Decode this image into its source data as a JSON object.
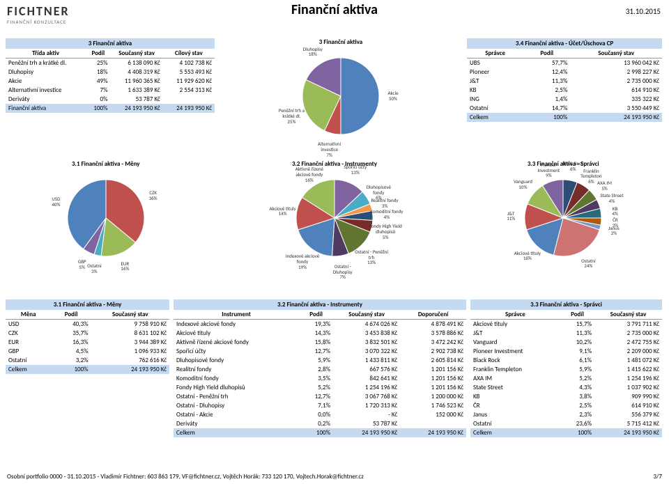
{
  "page_title": "Finanční aktiva",
  "date": "31.10.2015",
  "logo": {
    "name": "FICHTNER",
    "sub": "FINANČNÍ KONZULTACE"
  },
  "footer": {
    "left": "Osobní portfolio 0000 - 31.10.2015 - Vladimír Fichtner: 603 863 179, VF@fichtner.cz, Vojtěch Horák: 733 120 170, Vojtech.Horak@fichtner.cz",
    "right": "3/7"
  },
  "colors": {
    "hdr": "#c5d9f1"
  },
  "tbl3": {
    "title": "3 Finanční aktiva",
    "cols": [
      "Třída aktiv",
      "Podíl",
      "Současný stav",
      "Cílový stav"
    ],
    "rows": [
      [
        "Peněžní trh a krátké dl.",
        "25%",
        "6 138 090 Kč",
        "4 102 738 Kč"
      ],
      [
        "Dluhopisy",
        "18%",
        "4 408 319 Kč",
        "5 553 493 Kč"
      ],
      [
        "Akcie",
        "49%",
        "11 960 365 Kč",
        "11 929 620 Kč"
      ],
      [
        "Alternativní investice",
        "7%",
        "1 633 389 Kč",
        "2 554 313 Kč"
      ],
      [
        "Deriváty",
        "0%",
        "53 787 Kč",
        ""
      ],
      [
        "Finanční aktiva",
        "100%",
        "24 193 950 Kč",
        "24 193 950 Kč"
      ]
    ]
  },
  "pie3": {
    "title": "3 Finanční aktiva",
    "slices": [
      {
        "label": "Akcie",
        "pct": 50,
        "color": "#4f81bd"
      },
      {
        "label": "Alternativní investice",
        "pct": 7,
        "color": "#c0504d"
      },
      {
        "label": "Peněžní trh a krátké dl.",
        "pct": 25,
        "color": "#9bbb59"
      },
      {
        "label": "Dluhopisy",
        "pct": 18,
        "color": "#8064a2"
      }
    ]
  },
  "tbl34": {
    "title": "3.4 Finanční aktiva - Účet/Úschova CP",
    "cols": [
      "Správce",
      "Podíl",
      "Současný stav"
    ],
    "rows": [
      [
        "UBS",
        "57,7%",
        "13 960 042 Kč"
      ],
      [
        "Pioneer",
        "12,4%",
        "2 998 227 Kč"
      ],
      [
        "J&T",
        "11,3%",
        "2 735 000 Kč"
      ],
      [
        "KB",
        "2,5%",
        "614 910 Kč"
      ],
      [
        "ING",
        "1,4%",
        "335 322 Kč"
      ],
      [
        "Ostatní",
        "14,7%",
        "3 550 449 Kč"
      ],
      [
        "Celkem",
        "100%",
        "24 193 950 Kč"
      ]
    ]
  },
  "pie31": {
    "title": "3.1 Finanční aktiva - Měny",
    "slices": [
      {
        "label": "CZK",
        "pct": 36,
        "color": "#c0504d"
      },
      {
        "label": "EUR",
        "pct": 16,
        "color": "#9bbb59"
      },
      {
        "label": "Ostatní",
        "pct": 3,
        "color": "#4bacc6"
      },
      {
        "label": "GBP",
        "pct": 5,
        "color": "#8064a2"
      },
      {
        "label": "USD",
        "pct": 40,
        "color": "#4f81bd"
      }
    ]
  },
  "pie32": {
    "title": "3.2 Finanční aktiva - Instrumenty",
    "slices": [
      {
        "label": "Spořicí účty",
        "pct": 13,
        "color": "#8064a2"
      },
      {
        "label": "Dluhopisové fondy",
        "pct": 6,
        "color": "#4bacc6"
      },
      {
        "label": "Realitní fondy",
        "pct": 3,
        "color": "#f79646"
      },
      {
        "label": "Komoditní fondy",
        "pct": 4,
        "color": "#2c4d75"
      },
      {
        "label": "Fondy High Yield dluhopisů",
        "pct": 5,
        "color": "#772c2a"
      },
      {
        "label": "Ostatní - Peněžní trh",
        "pct": 13,
        "color": "#5f7530"
      },
      {
        "label": "Ostatní - Dluhopisy",
        "pct": 7,
        "color": "#4d3b62"
      },
      {
        "label": "Indexové akciové fondy",
        "pct": 19,
        "color": "#4f81bd"
      },
      {
        "label": "Akciové tituly",
        "pct": 14,
        "color": "#c0504d"
      },
      {
        "label": "Aktivně řízené akciové fondy",
        "pct": 16,
        "color": "#9bbb59"
      }
    ]
  },
  "pie33": {
    "title": "3.3 Finanční aktiva - Správci",
    "slices": [
      {
        "label": "Black Rock",
        "pct": 6,
        "color": "#2c4d75"
      },
      {
        "label": "Franklin Templeton",
        "pct": 6,
        "color": "#772c2a"
      },
      {
        "label": "AXA IM",
        "pct": 5,
        "color": "#5f7530"
      },
      {
        "label": "State Street",
        "pct": 4,
        "color": "#4d3b62"
      },
      {
        "label": "KB",
        "pct": 4,
        "color": "#276a7c"
      },
      {
        "label": "ČR",
        "pct": 3,
        "color": "#b65708"
      },
      {
        "label": "Janus",
        "pct": 2,
        "color": "#729aca"
      },
      {
        "label": "Ostatní",
        "pct": 24,
        "color": "#cd7371"
      },
      {
        "label": "Akciové tituly",
        "pct": 16,
        "color": "#4f81bd"
      },
      {
        "label": "J&T",
        "pct": 11,
        "color": "#c0504d"
      },
      {
        "label": "Vanguard",
        "pct": 10,
        "color": "#9bbb59"
      },
      {
        "label": "Pioneer Investment",
        "pct": 9,
        "color": "#8064a2"
      }
    ]
  },
  "tbl31": {
    "title": "3.1 Finanční aktiva - Měny",
    "cols": [
      "Měna",
      "Podíl",
      "Současný stav"
    ],
    "rows": [
      [
        "USD",
        "40,3%",
        "9 758 910 Kč"
      ],
      [
        "CZK",
        "35,7%",
        "8 631 102 Kč"
      ],
      [
        "EUR",
        "16,3%",
        "3 944 389 Kč"
      ],
      [
        "GBP",
        "4,5%",
        "1 096 933 Kč"
      ],
      [
        "Ostatní",
        "3,2%",
        "762 616 Kč"
      ],
      [
        "Celkem",
        "100%",
        "24 193 950 Kč"
      ]
    ]
  },
  "tbl32": {
    "title": "3.2 Finanční aktiva - Instrumenty",
    "cols": [
      "Instrument",
      "Podíl",
      "Současný stav",
      "Doporučení"
    ],
    "rows": [
      [
        "Indexové akciové fondy",
        "19,3%",
        "4 674 026 Kč",
        "4 878 491 Kč"
      ],
      [
        "Akciové tituly",
        "14,3%",
        "3 453 838 Kč",
        "3 578 886 Kč"
      ],
      [
        "Aktivně řízené akciové fondy",
        "15,8%",
        "3 832 501 Kč",
        "3 472 242 Kč"
      ],
      [
        "Spořicí účty",
        "12,7%",
        "3 070 322 Kč",
        "2 902 738 Kč"
      ],
      [
        "Dluhopisové fondy",
        "5,9%",
        "1 433 811 Kč",
        "2 605 814 Kč"
      ],
      [
        "Realitní fondy",
        "2,8%",
        "667 576 Kč",
        "1 201 156 Kč"
      ],
      [
        "Komoditní fondy",
        "3,5%",
        "842 641 Kč",
        "1 201 156 Kč"
      ],
      [
        "Fondy High Yield dluhopisů",
        "5,2%",
        "1 254 196 Kč",
        "1 201 156 Kč"
      ],
      [
        "Ostatní - Peněžní trh",
        "12,7%",
        "3 067 768 Kč",
        "1 200 000 Kč"
      ],
      [
        "Ostatní - Dluhopisy",
        "7,1%",
        "1 720 313 Kč",
        "1 746 523 Kč"
      ],
      [
        "Ostatní - Akcie",
        "0,0%",
        "-   Kč",
        "152 000 Kč"
      ],
      [
        "Deriváty",
        "0,2%",
        "53 787 Kč",
        ""
      ],
      [
        "Celkem",
        "100%",
        "24 193 950 Kč",
        "24 193 950 Kč"
      ]
    ]
  },
  "tbl33": {
    "title": "3.3 Finanční aktiva - Správci",
    "cols": [
      "Správce",
      "Podíl",
      "Současný stav"
    ],
    "rows": [
      [
        "Akciové tituly",
        "15,7%",
        "3 791 711 Kč"
      ],
      [
        "J&T",
        "11,3%",
        "2 735 000 Kč"
      ],
      [
        "Vanguard",
        "10,2%",
        "2 472 755 Kč"
      ],
      [
        "Pioneer Investment",
        "9,1%",
        "2 209 000 Kč"
      ],
      [
        "Black Rock",
        "6,1%",
        "1 481 072 Kč"
      ],
      [
        "Franklin Templeton",
        "5,9%",
        "1 415 622 Kč"
      ],
      [
        "AXA IM",
        "5,2%",
        "1 254 196 Kč"
      ],
      [
        "State Street",
        "4,3%",
        "1 037 902 Kč"
      ],
      [
        "KB",
        "3,8%",
        "909 990 Kč"
      ],
      [
        "ČR",
        "2,5%",
        "614 910 Kč"
      ],
      [
        "Janus",
        "2,3%",
        "556 379 Kč"
      ],
      [
        "Ostatní",
        "23,6%",
        "5 715 412 Kč"
      ],
      [
        "Celkem",
        "100%",
        "24 193 950 Kč"
      ]
    ]
  }
}
